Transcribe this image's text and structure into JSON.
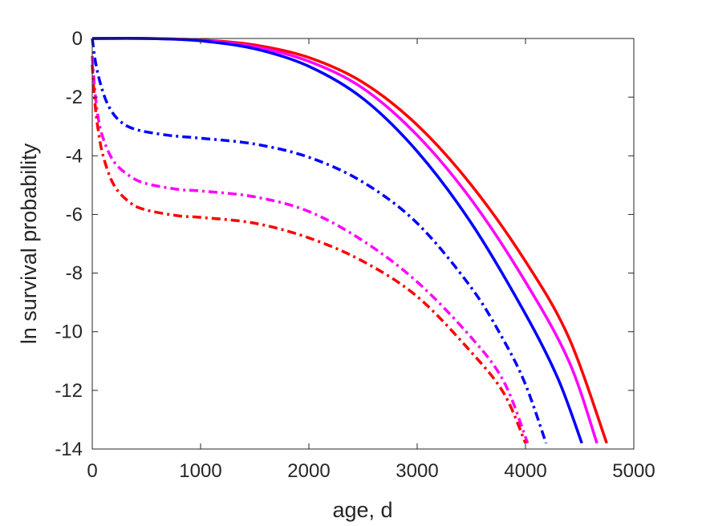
{
  "chart_data": {
    "type": "line",
    "title": "",
    "xlabel": "age, d",
    "ylabel": "ln survival probability",
    "xlim": [
      0,
      5000
    ],
    "ylim": [
      -14,
      0
    ],
    "xticks": [
      0,
      1000,
      2000,
      3000,
      4000,
      5000
    ],
    "xtick_labels": [
      "0",
      "1000",
      "2000",
      "3000",
      "4000",
      "5000"
    ],
    "yticks": [
      0,
      -2,
      -4,
      -6,
      -8,
      -10,
      -12,
      -14
    ],
    "ytick_labels": [
      "0",
      "-2",
      "-4",
      "-6",
      "-8",
      "-10",
      "-12",
      "-14"
    ],
    "grid": false,
    "box": true,
    "series": [
      {
        "color": "#ff0000",
        "style": "solid",
        "points": [
          [
            0,
            0
          ],
          [
            500,
            0
          ],
          [
            1000,
            -0.05
          ],
          [
            1500,
            -0.22
          ],
          [
            2000,
            -0.65
          ],
          [
            2500,
            -1.5
          ],
          [
            3000,
            -2.95
          ],
          [
            3500,
            -5.0
          ],
          [
            4000,
            -7.6
          ],
          [
            4400,
            -10.2
          ],
          [
            4750,
            -13.8
          ]
        ]
      },
      {
        "color": "#ff00ff",
        "style": "solid",
        "points": [
          [
            0,
            0
          ],
          [
            500,
            0
          ],
          [
            1000,
            -0.06
          ],
          [
            1500,
            -0.28
          ],
          [
            2000,
            -0.78
          ],
          [
            2500,
            -1.7
          ],
          [
            3000,
            -3.3
          ],
          [
            3500,
            -5.5
          ],
          [
            4000,
            -8.3
          ],
          [
            4400,
            -11.0
          ],
          [
            4660,
            -13.8
          ]
        ]
      },
      {
        "color": "#0000ff",
        "style": "solid",
        "points": [
          [
            0,
            0
          ],
          [
            500,
            0
          ],
          [
            1000,
            -0.08
          ],
          [
            1500,
            -0.35
          ],
          [
            2000,
            -0.95
          ],
          [
            2500,
            -2.05
          ],
          [
            3000,
            -3.85
          ],
          [
            3500,
            -6.3
          ],
          [
            4000,
            -9.4
          ],
          [
            4300,
            -11.6
          ],
          [
            4520,
            -13.8
          ]
        ]
      },
      {
        "color": "#0000ff",
        "style": "dashdot",
        "points": [
          [
            0,
            0
          ],
          [
            30,
            -0.8
          ],
          [
            80,
            -1.6
          ],
          [
            150,
            -2.3
          ],
          [
            250,
            -2.8
          ],
          [
            400,
            -3.1
          ],
          [
            700,
            -3.3
          ],
          [
            1000,
            -3.4
          ],
          [
            1500,
            -3.6
          ],
          [
            2000,
            -4.05
          ],
          [
            2500,
            -4.9
          ],
          [
            3000,
            -6.3
          ],
          [
            3500,
            -8.5
          ],
          [
            3800,
            -10.3
          ],
          [
            4000,
            -11.8
          ],
          [
            4190,
            -13.8
          ]
        ]
      },
      {
        "color": "#ff00ff",
        "style": "dashdot",
        "points": [
          [
            0,
            -0.6
          ],
          [
            20,
            -1.6
          ],
          [
            50,
            -2.6
          ],
          [
            100,
            -3.4
          ],
          [
            200,
            -4.2
          ],
          [
            350,
            -4.7
          ],
          [
            500,
            -4.95
          ],
          [
            800,
            -5.15
          ],
          [
            1000,
            -5.2
          ],
          [
            1500,
            -5.4
          ],
          [
            2000,
            -5.9
          ],
          [
            2500,
            -6.9
          ],
          [
            3000,
            -8.3
          ],
          [
            3500,
            -10.2
          ],
          [
            3800,
            -11.7
          ],
          [
            4020,
            -13.8
          ]
        ]
      },
      {
        "color": "#ff0000",
        "style": "dashdot",
        "points": [
          [
            0,
            -0.9
          ],
          [
            20,
            -2.0
          ],
          [
            50,
            -3.0
          ],
          [
            100,
            -4.0
          ],
          [
            200,
            -5.0
          ],
          [
            350,
            -5.6
          ],
          [
            500,
            -5.85
          ],
          [
            800,
            -6.05
          ],
          [
            1000,
            -6.1
          ],
          [
            1500,
            -6.3
          ],
          [
            2000,
            -6.8
          ],
          [
            2500,
            -7.6
          ],
          [
            3000,
            -8.8
          ],
          [
            3500,
            -10.7
          ],
          [
            3800,
            -12.1
          ],
          [
            4000,
            -13.8
          ]
        ]
      }
    ]
  }
}
